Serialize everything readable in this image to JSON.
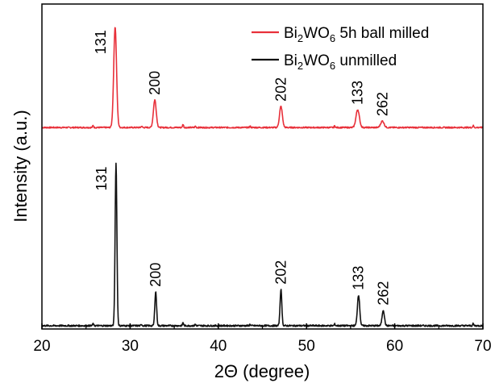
{
  "chart_data": {
    "type": "line",
    "xlabel": "2Θ (degree)",
    "ylabel": "Intensity (a.u.)",
    "xlim": [
      20,
      70
    ],
    "xticks": [
      "20",
      "30",
      "40",
      "50",
      "60",
      "70"
    ],
    "y_ticks_shown": false,
    "legend_position": "top-right",
    "series": [
      {
        "name_parts": [
          "Bi",
          "2",
          "WO",
          "6",
          " 5h ball milled"
        ],
        "color": "#e8303a",
        "baseline": 0.62,
        "peaks": [
          {
            "x": 28.3,
            "height": 0.31,
            "label": "131"
          },
          {
            "x": 32.8,
            "height": 0.085,
            "label": "200"
          },
          {
            "x": 47.1,
            "height": 0.065,
            "label": "202"
          },
          {
            "x": 55.8,
            "height": 0.055,
            "label": "133"
          },
          {
            "x": 58.6,
            "height": 0.02,
            "label": "262"
          }
        ]
      },
      {
        "name_parts": [
          "Bi",
          "2",
          "WO",
          "6",
          " unmilled"
        ],
        "color": "#111111",
        "baseline": 0.01,
        "peaks": [
          {
            "x": 28.4,
            "height": 0.5,
            "label": "131"
          },
          {
            "x": 32.9,
            "height": 0.105,
            "label": "200"
          },
          {
            "x": 47.1,
            "height": 0.112,
            "label": "202"
          },
          {
            "x": 55.9,
            "height": 0.095,
            "label": "133"
          },
          {
            "x": 58.7,
            "height": 0.048,
            "label": "262"
          }
        ]
      }
    ]
  }
}
